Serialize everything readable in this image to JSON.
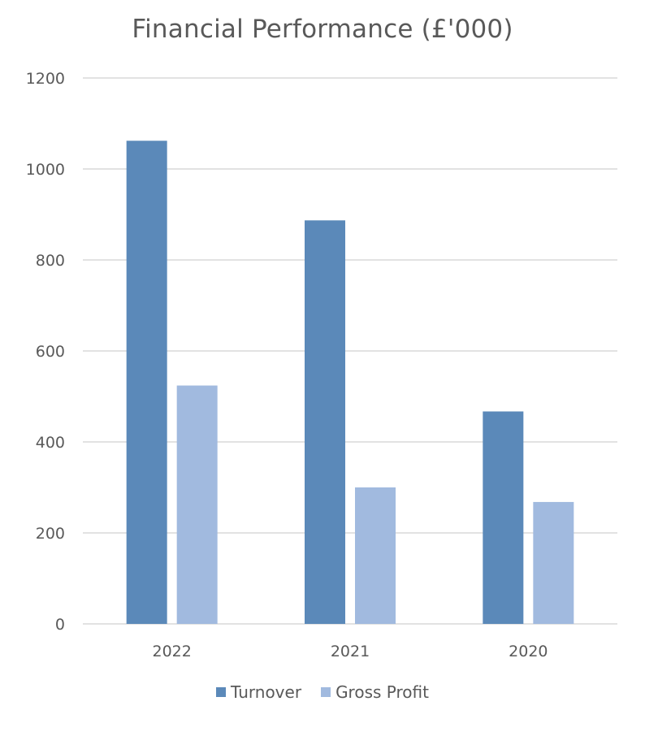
{
  "chart_data": {
    "type": "bar",
    "title": "Financial Performance (£'000)",
    "xlabel": "",
    "ylabel": "",
    "categories": [
      "2022",
      "2021",
      "2020"
    ],
    "series": [
      {
        "name": "Turnover",
        "values": [
          1062,
          887,
          467
        ],
        "color": "#5B89B9"
      },
      {
        "name": "Gross Profit",
        "values": [
          524,
          300,
          268
        ],
        "color": "#A1BADF"
      }
    ],
    "ylim": [
      0,
      1200
    ],
    "yticks": [
      "0",
      "200",
      "400",
      "600",
      "800",
      "1000",
      "1200"
    ],
    "grid": true,
    "legend": "bottom"
  },
  "colors": {
    "grid": "#D9D9D9",
    "text": "#595959"
  }
}
